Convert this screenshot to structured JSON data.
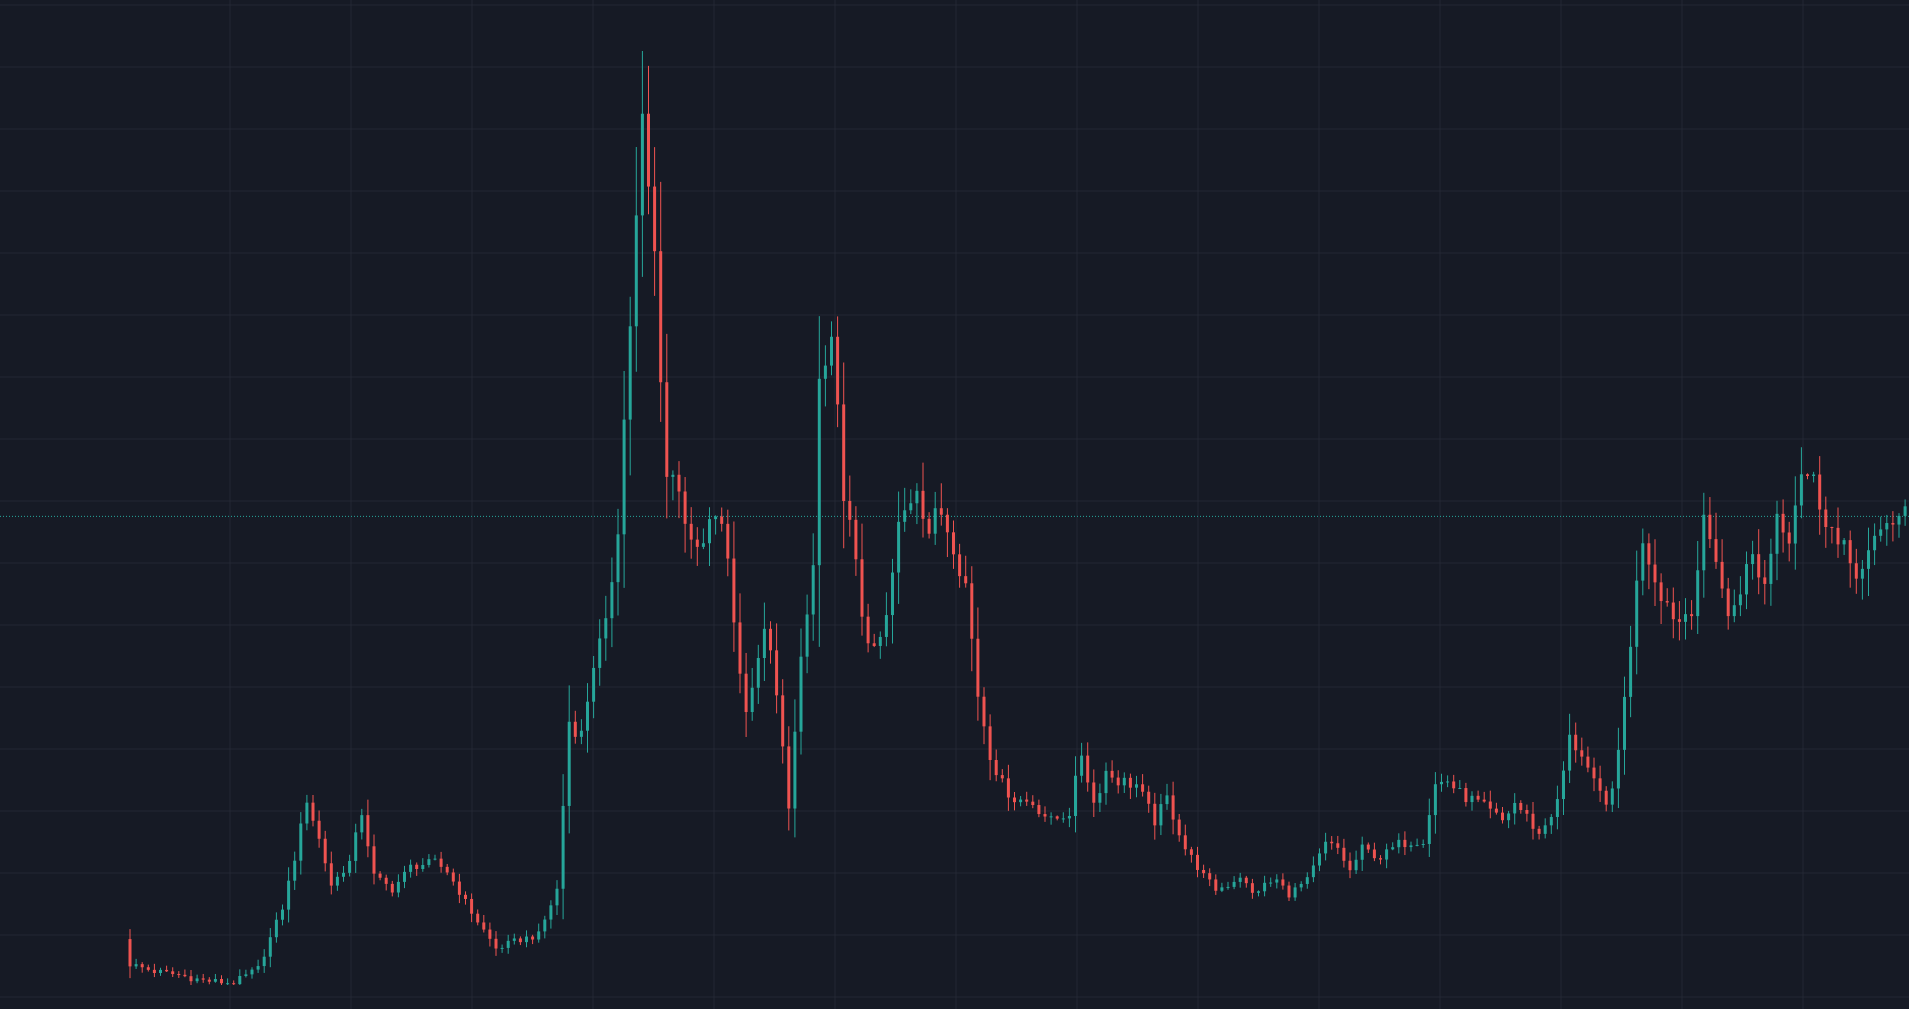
{
  "theme": {
    "background": "#161a25",
    "grid_color": "#232733",
    "up_color": "#26a69a",
    "down_color": "#ef5350",
    "price_line_color": "#26a69a"
  },
  "chart_data": {
    "type": "candlestick",
    "title": "",
    "xlabel": "",
    "ylabel": "",
    "grid": true,
    "axis_labels_visible": false,
    "ylim": [
      0,
      100
    ],
    "last_price_line": 51.5,
    "control_points": [
      [
        0,
        2.3
      ],
      [
        4,
        1.5
      ],
      [
        8,
        1.1
      ],
      [
        12,
        0.5
      ],
      [
        17,
        0.2
      ],
      [
        21,
        1.8
      ],
      [
        25,
        8.5
      ],
      [
        27,
        14
      ],
      [
        29,
        20.5
      ],
      [
        31,
        16
      ],
      [
        33,
        11
      ],
      [
        36,
        13.5
      ],
      [
        38,
        19
      ],
      [
        40,
        12
      ],
      [
        43,
        10.5
      ],
      [
        46,
        13
      ],
      [
        50,
        13.5
      ],
      [
        52,
        12.5
      ],
      [
        56,
        8
      ],
      [
        60,
        4
      ],
      [
        64,
        5
      ],
      [
        67,
        5.5
      ],
      [
        70,
        10.5
      ],
      [
        72,
        29
      ],
      [
        74,
        27.5
      ],
      [
        76,
        35.5
      ],
      [
        78,
        39
      ],
      [
        80,
        51
      ],
      [
        82,
        73
      ],
      [
        84,
        94
      ],
      [
        86,
        80
      ],
      [
        88,
        56
      ],
      [
        90,
        55.5
      ],
      [
        92,
        47.5
      ],
      [
        94,
        48
      ],
      [
        96,
        52
      ],
      [
        98,
        47
      ],
      [
        100,
        34
      ],
      [
        101,
        31
      ],
      [
        103,
        35
      ],
      [
        104,
        40
      ],
      [
        106,
        31.5
      ],
      [
        108,
        20
      ],
      [
        110,
        35
      ],
      [
        112,
        46
      ],
      [
        113,
        66
      ],
      [
        115,
        69
      ],
      [
        117,
        55
      ],
      [
        118,
        50
      ],
      [
        120,
        41
      ],
      [
        122,
        36
      ],
      [
        124,
        40
      ],
      [
        126,
        50
      ],
      [
        129,
        55.5
      ],
      [
        131,
        50
      ],
      [
        133,
        52
      ],
      [
        135,
        49
      ],
      [
        137,
        44
      ],
      [
        139,
        32
      ],
      [
        141,
        25.5
      ],
      [
        143,
        22
      ],
      [
        145,
        20.5
      ],
      [
        148,
        20
      ],
      [
        151,
        18
      ],
      [
        154,
        19
      ],
      [
        156,
        25.5
      ],
      [
        158,
        20
      ],
      [
        160,
        23.5
      ],
      [
        162,
        22.5
      ],
      [
        165,
        22
      ],
      [
        168,
        18
      ],
      [
        170,
        20.5
      ],
      [
        173,
        15
      ],
      [
        176,
        12
      ],
      [
        178,
        10.5
      ],
      [
        180,
        11
      ],
      [
        182,
        12
      ],
      [
        184,
        10
      ],
      [
        186,
        11
      ],
      [
        188,
        11.5
      ],
      [
        190,
        10
      ],
      [
        193,
        11.5
      ],
      [
        196,
        15.5
      ],
      [
        198,
        15
      ],
      [
        200,
        12.5
      ],
      [
        202,
        15
      ],
      [
        205,
        14
      ],
      [
        208,
        15.5
      ],
      [
        212,
        16
      ],
      [
        214,
        22
      ],
      [
        216,
        22.5
      ],
      [
        218,
        21
      ],
      [
        221,
        20
      ],
      [
        223,
        19
      ],
      [
        225,
        18
      ],
      [
        227,
        20
      ],
      [
        229,
        18.5
      ],
      [
        231,
        16.5
      ],
      [
        234,
        20
      ],
      [
        236,
        27
      ],
      [
        238,
        25.5
      ],
      [
        240,
        22
      ],
      [
        242,
        19.5
      ],
      [
        244,
        25
      ],
      [
        246,
        38
      ],
      [
        248,
        49.5
      ],
      [
        250,
        45
      ],
      [
        252,
        42
      ],
      [
        254,
        40
      ],
      [
        256,
        42
      ],
      [
        258,
        50
      ],
      [
        260,
        47.5
      ],
      [
        262,
        40
      ],
      [
        264,
        44
      ],
      [
        266,
        47
      ],
      [
        268,
        44
      ],
      [
        270,
        52
      ],
      [
        272,
        50
      ],
      [
        274,
        57
      ],
      [
        276,
        55
      ],
      [
        278,
        52
      ],
      [
        280,
        48
      ],
      [
        282,
        46.5
      ],
      [
        284,
        45.5
      ],
      [
        286,
        48
      ],
      [
        288,
        51.5
      ],
      [
        290,
        51
      ],
      [
        292,
        51.5
      ]
    ]
  }
}
